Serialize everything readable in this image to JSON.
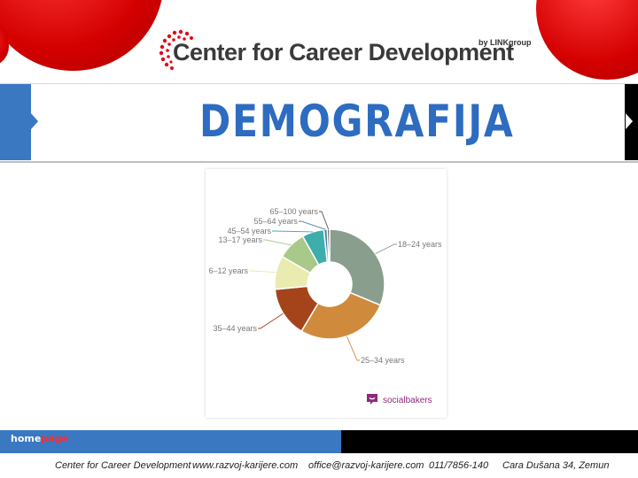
{
  "header": {
    "logo_text": "Center for Career Development",
    "logo_byline": "by LINKgroup"
  },
  "slide": {
    "title": "DEMOGRAFIJA"
  },
  "chart_data": {
    "type": "pie",
    "variant": "donut",
    "categories": [
      "18–24 years",
      "25–34 years",
      "35–44 years",
      "6–12 years",
      "13–17 years",
      "45–54 years",
      "55–64 years",
      "65–100 years"
    ],
    "values": [
      31.5,
      27.5,
      15.0,
      10.0,
      8.5,
      6.5,
      1.0,
      0.7
    ],
    "colors": [
      "#8a9e8e",
      "#d08a3c",
      "#a5441a",
      "#e9ebb0",
      "#a9c98a",
      "#3daeac",
      "#4a7ea6",
      "#555555"
    ]
  },
  "watermark": {
    "brand": "socialbakers"
  },
  "footer_band": {
    "homepage_a": "home",
    "homepage_b": "page"
  },
  "footer": {
    "org": "Center for Career Development",
    "website": "www.razvoj-karijere.com",
    "email": "office@razvoj-karijere.com",
    "phone": "011/7856-140",
    "address": "Cara Dušana 34, Zemun"
  }
}
